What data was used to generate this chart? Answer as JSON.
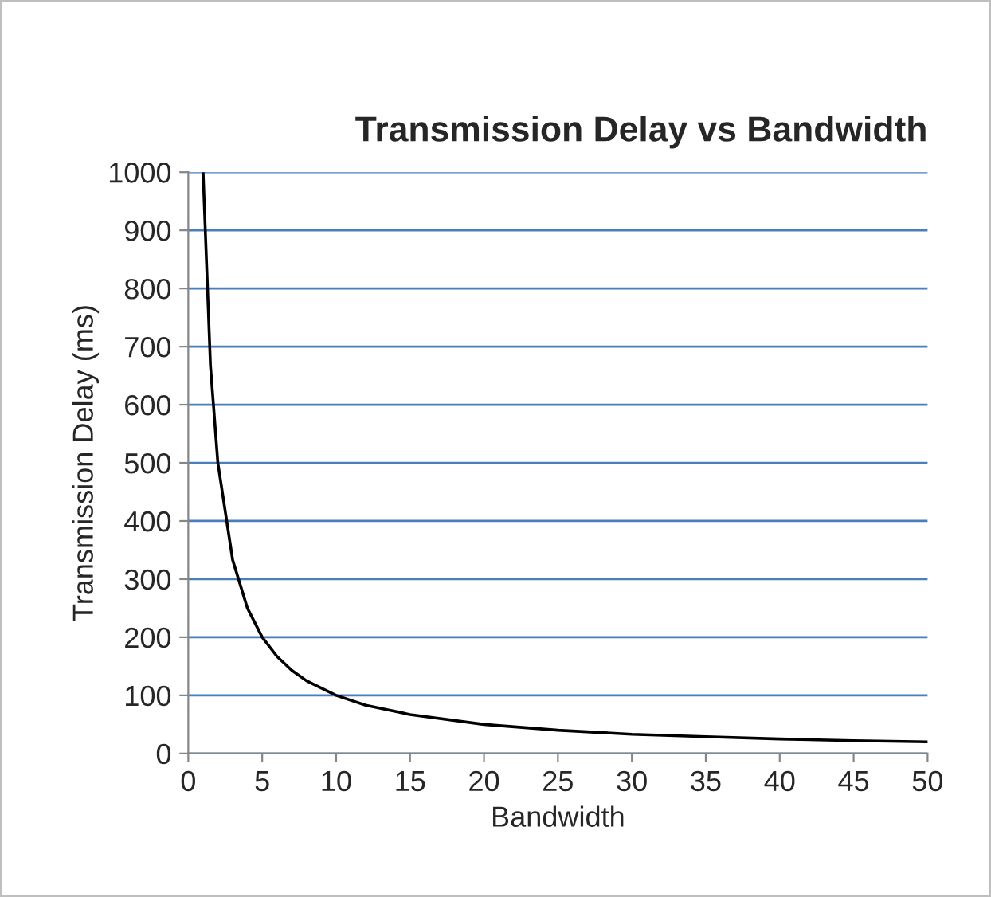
{
  "chart_data": {
    "type": "line",
    "title": "Transmission Delay vs Bandwidth",
    "xlabel": "Bandwidth",
    "ylabel": "Transmission Delay (ms)",
    "x": [
      1,
      1.5,
      2,
      3,
      4,
      5,
      6,
      7,
      8,
      10,
      12,
      15,
      20,
      25,
      30,
      35,
      40,
      45,
      50
    ],
    "series": [
      {
        "color": "#000000",
        "values": [
          1000,
          667,
          500,
          333,
          250,
          200,
          167,
          143,
          125,
          100,
          83,
          67,
          50,
          40,
          33,
          29,
          25,
          22,
          20
        ]
      }
    ],
    "xlim": [
      0,
      50
    ],
    "xticks": [
      0,
      5,
      10,
      15,
      20,
      25,
      30,
      35,
      40,
      45,
      50
    ],
    "ylim": [
      0,
      1000
    ],
    "yticks": [
      0,
      100,
      200,
      300,
      400,
      500,
      600,
      700,
      800,
      900,
      1000
    ],
    "grid": "y",
    "legend": false,
    "marker": "none",
    "line_style": "solid"
  }
}
